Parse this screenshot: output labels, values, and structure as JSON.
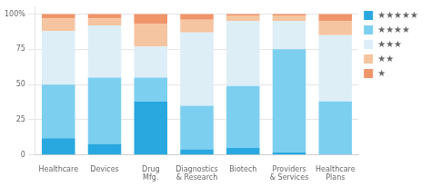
{
  "chart_data": {
    "type": "bar",
    "categories": [
      "Healthcare",
      "Devices",
      "Drug\nMfg.",
      "Diagnostics\n& Research",
      "Biotech",
      "Providers\n& Services",
      "Healthcare\nPlans"
    ],
    "series": [
      {
        "name": "★★★★★",
        "color": "#29A8E0",
        "values": [
          12,
          8,
          38,
          4,
          5,
          2,
          0
        ]
      },
      {
        "name": "★★★★",
        "color": "#7DCFF0",
        "values": [
          38,
          47,
          17,
          31,
          44,
          73,
          38
        ]
      },
      {
        "name": "★★★",
        "color": "#DDEEF7",
        "values": [
          38,
          37,
          22,
          52,
          46,
          20,
          47
        ]
      },
      {
        "name": "★★",
        "color": "#F5C4A0",
        "values": [
          9,
          5,
          16,
          9,
          4,
          4,
          10
        ]
      },
      {
        "name": "★",
        "color": "#F0956A",
        "values": [
          3,
          3,
          7,
          4,
          1,
          1,
          5
        ]
      }
    ],
    "stacked": true,
    "ylim": [
      0,
      105
    ],
    "yticks": [
      0,
      25,
      50,
      75,
      {
        "value": 100,
        "label": "100%"
      }
    ],
    "grid": true,
    "legend": "right"
  }
}
